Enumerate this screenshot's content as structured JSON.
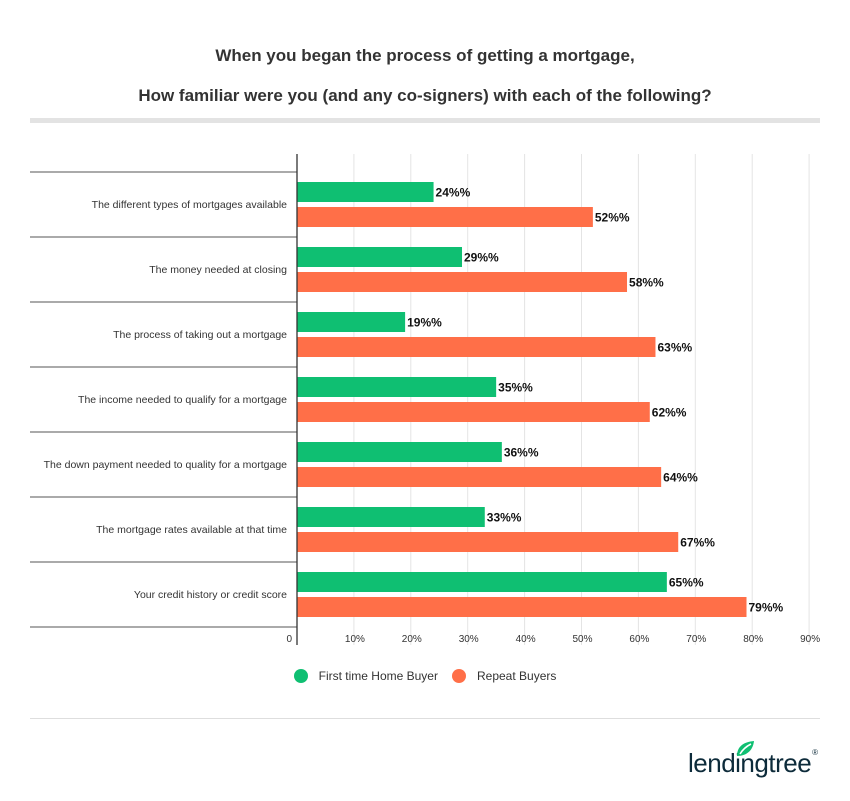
{
  "header": {
    "title_line1": "When you began the process of getting a mortgage,",
    "title_line2": "How familiar were you (and any co-signers) with each of the following?"
  },
  "colors": {
    "first_time": "#0fbf72",
    "repeat": "#ff6f48",
    "grid": "#e4e4e4",
    "row_line": "#555555",
    "axis": "#333333"
  },
  "chart_data": {
    "type": "bar",
    "orientation": "horizontal",
    "title": "When you began the process of getting a mortgage, How familiar were you (and any co-signers) with each of the following?",
    "categories": [
      "The different types of mortgages available",
      "The money needed at closing",
      "The process of taking out a mortgage",
      "The income needed to qualify for a mortgage",
      "The down payment needed to quality for a mortgage",
      "The mortgage rates available at that time",
      "Your credit history or credit score"
    ],
    "series": [
      {
        "name": "First time Home Buyer",
        "values": [
          24,
          29,
          19,
          35,
          36,
          33,
          65
        ],
        "labels": [
          "24%%",
          "29%%",
          "19%%",
          "35%%",
          "36%%",
          "33%%",
          "65%%"
        ]
      },
      {
        "name": "Repeat Buyers",
        "values": [
          52,
          58,
          63,
          62,
          64,
          67,
          79
        ],
        "labels": [
          "52%%",
          "58%%",
          "63%%",
          "62%%",
          "64%%",
          "67%%",
          "79%%"
        ]
      }
    ],
    "xlim": [
      0,
      90
    ],
    "xticks": [
      0,
      10,
      20,
      30,
      40,
      50,
      60,
      70,
      80,
      90
    ],
    "xtick_labels": [
      "0",
      "10%",
      "20%",
      "30%",
      "40%",
      "50%",
      "60%",
      "70%",
      "80%",
      "90%"
    ],
    "grid": true,
    "legend_position": "bottom-center"
  },
  "legend": {
    "first_time_label": "First time Home Buyer",
    "repeat_label": "Repeat Buyers"
  },
  "brand": {
    "logo_text": "lendingtree"
  }
}
